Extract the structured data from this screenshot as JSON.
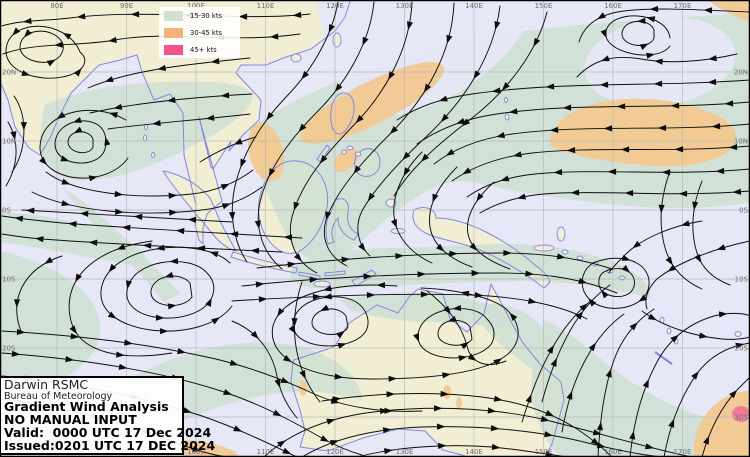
{
  "legend": {
    "items": [
      {
        "label": "15-30 kts",
        "color": "#cfe0d2"
      },
      {
        "label": "30-45 kts",
        "color": "#f2b27c"
      },
      {
        "label": "45+ kts",
        "color": "#f2548c"
      }
    ]
  },
  "info_box": {
    "org": "Darwin RSMC",
    "dept": "Bureau of Meteorology",
    "product": "Gradient Wind Analysis",
    "note": "NO MANUAL INPUT",
    "valid": "Valid:  0000 UTC 17 Dec 2024",
    "issued": "Issued:0201 UTC 17 DEC 2024"
  },
  "graticule": {
    "lon_labels": [
      "80E",
      "90E",
      "100E",
      "110E",
      "120E",
      "130E",
      "140E",
      "150E",
      "160E",
      "170E"
    ],
    "lat_labels": [
      "20N",
      "10N",
      "0S",
      "10S",
      "20S",
      "30S"
    ]
  },
  "colors": {
    "ocean": "#e6e7f7",
    "land": "#f1eed3",
    "wind_15_30": "#cfe0d3",
    "wind_30_45": "#f3c88e",
    "wind_45p": "#ee6b97",
    "coast": "#8585e2",
    "grid": "#b9b9b9",
    "stream": "#0d0d0d",
    "label": "#6e6e6e",
    "border": "#000000"
  }
}
